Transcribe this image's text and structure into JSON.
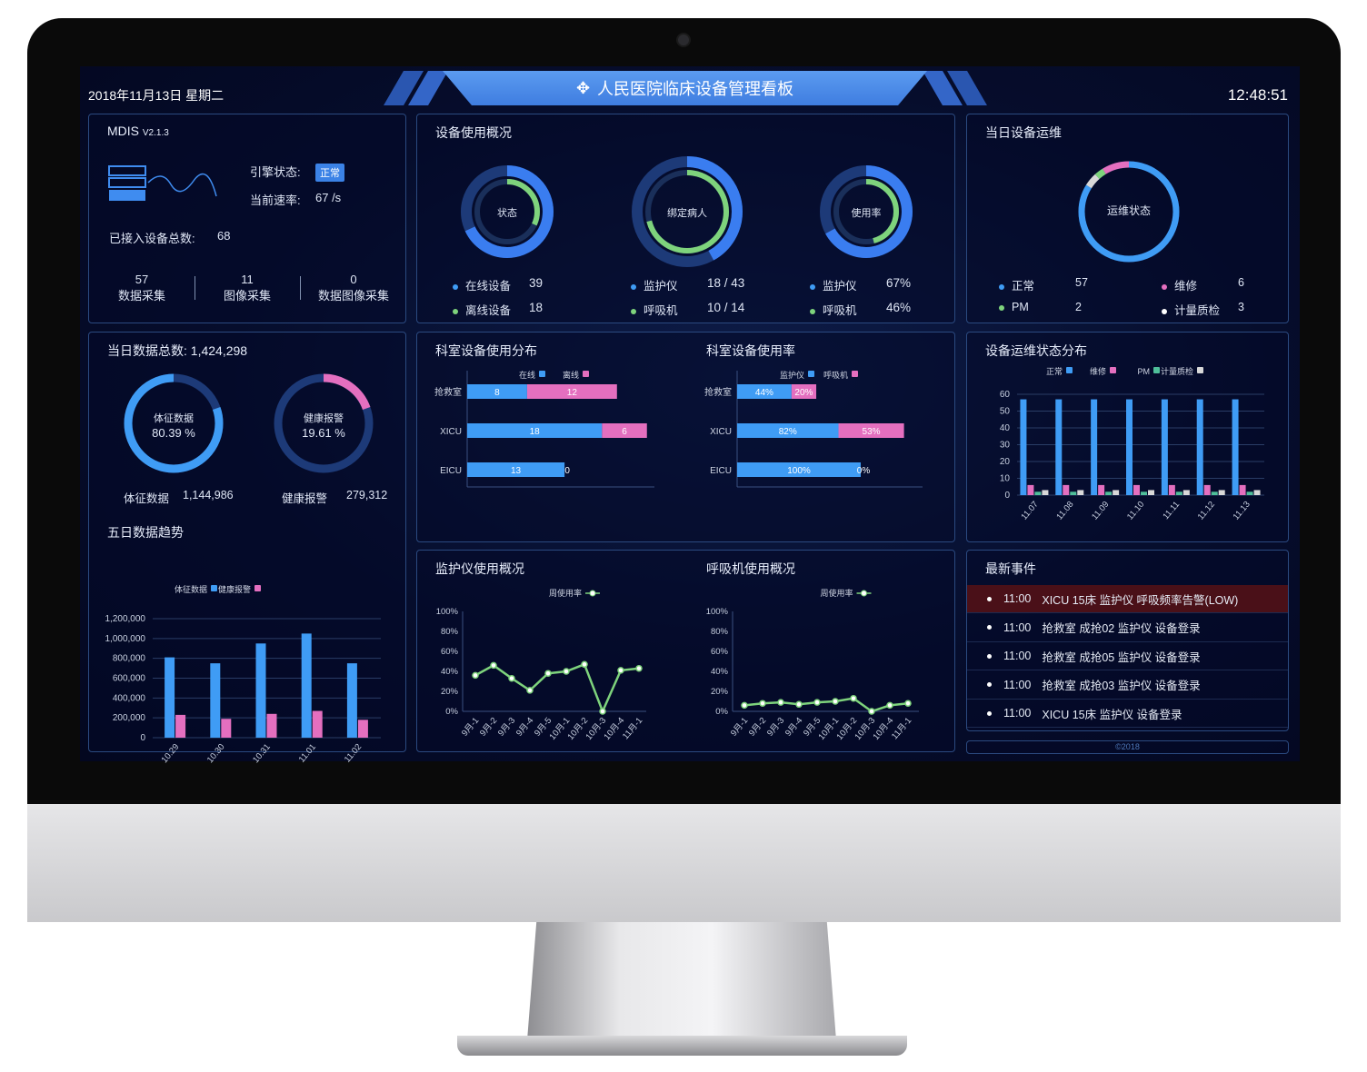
{
  "header": {
    "date": "2018年11月13日 星期二",
    "title": "人民医院临床设备管理看板",
    "clock": "12:48:51"
  },
  "system": {
    "name": "MDIS",
    "version": "V2.1.3",
    "engine_label": "引擎状态:",
    "engine_status": "正常",
    "rate_label": "当前速率:",
    "rate_value": "67 /s",
    "total_label": "已接入设备总数:",
    "total_value": "68",
    "stats": [
      {
        "value": "57",
        "label": "数据采集"
      },
      {
        "value": "11",
        "label": "图像采集"
      },
      {
        "value": "0",
        "label": "数据图像采集"
      }
    ]
  },
  "usage": {
    "title": "设备使用概况",
    "donuts": [
      {
        "center": "状态",
        "rows": [
          {
            "label": "在线设备",
            "value": "39"
          },
          {
            "label": "离线设备",
            "value": "18"
          }
        ],
        "outer": 0.68,
        "inner": 0.32
      },
      {
        "center": "绑定病人",
        "rows": [
          {
            "label": "监护仪",
            "value": "18 / 43"
          },
          {
            "label": "呼吸机",
            "value": "10 / 14"
          }
        ],
        "outer": 0.42,
        "inner": 0.71
      },
      {
        "center": "使用率",
        "rows": [
          {
            "label": "监护仪",
            "value": "67%"
          },
          {
            "label": "呼吸机",
            "value": "46%"
          }
        ],
        "outer": 0.67,
        "inner": 0.46
      }
    ]
  },
  "maint": {
    "title": "当日设备运维",
    "center": "运维状态",
    "rows": [
      {
        "label": "正常",
        "value": "57",
        "color": "#3f9cf5"
      },
      {
        "label": "维修",
        "value": "6",
        "color": "#e46fbf"
      },
      {
        "label": "PM",
        "value": "2",
        "color": "#7ed37c"
      },
      {
        "label": "计量质检",
        "value": "3",
        "color": "#d8d8d8"
      }
    ]
  },
  "data": {
    "total_label": "当日数据总数:",
    "total_value": "1,424,298",
    "donuts": [
      {
        "center_label": "体征数据",
        "center_value": "80.39 %",
        "label": "体征数据",
        "value": "1,144,986",
        "fraction": 0.8039
      },
      {
        "center_label": "健康报警",
        "center_value": "19.61 %",
        "label": "健康报警",
        "value": "279,312",
        "fraction": 0.1961
      }
    ],
    "trend_title": "五日数据趋势"
  },
  "dept": {
    "dist_title": "科室设备使用分布",
    "rate_title": "科室设备使用率"
  },
  "mstatus": {
    "title": "设备运维状态分布"
  },
  "monitor": {
    "title": "监护仪使用概况"
  },
  "vent": {
    "title": "呼吸机使用概况"
  },
  "events": {
    "title": "最新事件",
    "items": [
      {
        "time": "11:00",
        "text": "XICU 15床 监护仪 呼吸频率告警(LOW)",
        "alert": true
      },
      {
        "time": "11:00",
        "text": "抢救室 成抢02 监护仪 设备登录"
      },
      {
        "time": "11:00",
        "text": "抢救室 成抢05 监护仪 设备登录"
      },
      {
        "time": "11:00",
        "text": "抢救室 成抢03 监护仪 设备登录"
      },
      {
        "time": "11:00",
        "text": "XICU 15床 监护仪 设备登录"
      }
    ]
  },
  "footer": "©2018",
  "colors": {
    "blue": "#3f9cf5",
    "pink": "#e46fbf",
    "green": "#7ed37c",
    "teal": "#4fbf9a",
    "grey": "#d8d8d8"
  },
  "chart_data": [
    {
      "type": "bar",
      "id": "trend",
      "categories": [
        "10.29",
        "10.30",
        "10.31",
        "11.01",
        "11.02"
      ],
      "ylim": [
        0,
        1200000
      ],
      "yticks": [
        "0",
        "200,000",
        "400,000",
        "600,000",
        "800,000",
        "1,000,000",
        "1,200,000"
      ],
      "legend": "top",
      "series": [
        {
          "name": "体征数据",
          "values": [
            810000,
            750000,
            950000,
            1050000,
            750000
          ]
        },
        {
          "name": "健康报警",
          "values": [
            230000,
            190000,
            240000,
            270000,
            180000
          ]
        }
      ]
    },
    {
      "type": "bar",
      "id": "dist",
      "orientation": "horizontal",
      "stacked": true,
      "categories": [
        "抢救室",
        "XICU",
        "EICU"
      ],
      "xlim": [
        0,
        25
      ],
      "legend": "top",
      "series": [
        {
          "name": "在线",
          "values": [
            8,
            18,
            13
          ]
        },
        {
          "name": "离线",
          "values": [
            12,
            6,
            0
          ]
        }
      ]
    },
    {
      "type": "bar",
      "id": "rate",
      "orientation": "horizontal",
      "stacked": true,
      "categories": [
        "抢救室",
        "XICU",
        "EICU"
      ],
      "xlim": [
        0,
        150
      ],
      "unit": "%",
      "legend": "top",
      "series": [
        {
          "name": "监护仪",
          "values": [
            44,
            82,
            100
          ]
        },
        {
          "name": "呼吸机",
          "values": [
            20,
            53,
            0
          ]
        }
      ]
    },
    {
      "type": "bar",
      "id": "mstat",
      "categories": [
        "11.07",
        "11.08",
        "11.09",
        "11.10",
        "11.11",
        "11.12",
        "11.13"
      ],
      "ylim": [
        0,
        60
      ],
      "yticks": [
        "0",
        "10",
        "20",
        "30",
        "40",
        "50",
        "60"
      ],
      "legend": "top",
      "series": [
        {
          "name": "正常",
          "values": [
            57,
            57,
            57,
            57,
            57,
            57,
            57
          ]
        },
        {
          "name": "维修",
          "values": [
            6,
            6,
            6,
            6,
            6,
            6,
            6
          ]
        },
        {
          "name": "PM",
          "values": [
            2,
            2,
            2,
            2,
            2,
            2,
            2
          ]
        },
        {
          "name": "计量质检",
          "values": [
            3,
            3,
            3,
            3,
            3,
            3,
            3
          ]
        }
      ]
    },
    {
      "type": "line",
      "id": "mon",
      "categories": [
        "9月-1",
        "9月-2",
        "9月-3",
        "9月-4",
        "9月-5",
        "10月-1",
        "10月-2",
        "10月-3",
        "10月-4",
        "11月-1"
      ],
      "ylim": [
        0,
        100
      ],
      "yticks": [
        "0%",
        "20%",
        "40%",
        "60%",
        "80%",
        "100%"
      ],
      "legend": "top",
      "series": [
        {
          "name": "周使用率",
          "values": [
            36,
            46,
            33,
            21,
            38,
            40,
            47,
            0,
            41,
            43
          ]
        }
      ]
    },
    {
      "type": "line",
      "id": "ven",
      "categories": [
        "9月-1",
        "9月-2",
        "9月-3",
        "9月-4",
        "9月-5",
        "10月-1",
        "10月-2",
        "10月-3",
        "10月-4",
        "11月-1"
      ],
      "ylim": [
        0,
        100
      ],
      "yticks": [
        "0%",
        "20%",
        "40%",
        "60%",
        "80%",
        "100%"
      ],
      "legend": "top",
      "series": [
        {
          "name": "周使用率",
          "values": [
            6,
            8,
            9,
            7,
            9,
            10,
            13,
            0,
            6,
            8
          ]
        }
      ]
    }
  ]
}
